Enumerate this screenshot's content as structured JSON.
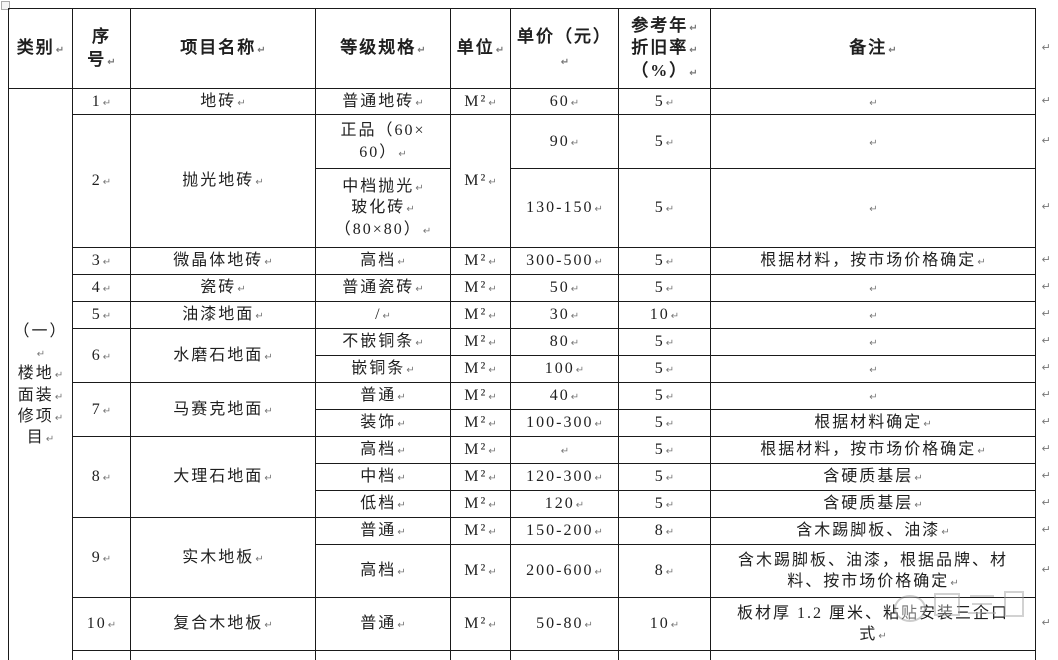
{
  "colors": {
    "ink": "#1f1f1f",
    "border": "#1a1a1a",
    "formatting_mark": "#777777"
  },
  "table": {
    "columns": [
      {
        "key": "category",
        "label": "类别↵"
      },
      {
        "key": "seq",
        "label": "序\n号↵"
      },
      {
        "key": "project",
        "label": "项目名称↵"
      },
      {
        "key": "grade",
        "label": "等级规格↵"
      },
      {
        "key": "unit",
        "label": "单位↵"
      },
      {
        "key": "price",
        "label": "单价（元）↵"
      },
      {
        "key": "depreciation",
        "label": "参考年↵\n折旧率↵\n（%）↵"
      },
      {
        "key": "remark",
        "label": "备注↵"
      }
    ],
    "rows": [
      {
        "id": "r1",
        "cells": [
          {
            "col": "category",
            "text": "（一）↵\n楼地↵\n面装↵\n修项↵\n目↵",
            "rs": 17
          },
          {
            "col": "seq",
            "text": "1↵"
          },
          {
            "col": "project",
            "text": "地砖↵"
          },
          {
            "col": "grade",
            "text": "普通地砖↵"
          },
          {
            "col": "unit",
            "text": "M²↵"
          },
          {
            "col": "price",
            "text": "60↵"
          },
          {
            "col": "depreciation",
            "text": "5↵"
          },
          {
            "col": "remark",
            "text": "↵"
          }
        ]
      },
      {
        "id": "r2a",
        "cells": [
          {
            "col": "seq",
            "text": "2↵",
            "rs": 2
          },
          {
            "col": "project",
            "text": "抛光地砖↵",
            "rs": 2
          },
          {
            "col": "grade",
            "text": "正品（60×\n60）↵"
          },
          {
            "col": "unit",
            "text": "M²↵",
            "rs": 2
          },
          {
            "col": "price",
            "text": "90↵"
          },
          {
            "col": "depreciation",
            "text": "5↵"
          },
          {
            "col": "remark",
            "text": "↵"
          }
        ]
      },
      {
        "id": "r2b",
        "cells": [
          {
            "col": "grade",
            "text": "中档抛光↵\n玻化砖↵\n（80×80）↵"
          },
          {
            "col": "price",
            "text": "130-150↵"
          },
          {
            "col": "depreciation",
            "text": "5↵"
          },
          {
            "col": "remark",
            "text": "↵"
          }
        ]
      },
      {
        "id": "r3",
        "cells": [
          {
            "col": "seq",
            "text": "3↵"
          },
          {
            "col": "project",
            "text": "微晶体地砖↵"
          },
          {
            "col": "grade",
            "text": "高档↵"
          },
          {
            "col": "unit",
            "text": "M²↵"
          },
          {
            "col": "price",
            "text": "300-500↵"
          },
          {
            "col": "depreciation",
            "text": "5↵"
          },
          {
            "col": "remark",
            "text": "根据材料，按市场价格确定↵"
          }
        ]
      },
      {
        "id": "r4",
        "cells": [
          {
            "col": "seq",
            "text": "4↵"
          },
          {
            "col": "project",
            "text": "瓷砖↵"
          },
          {
            "col": "grade",
            "text": "普通瓷砖↵"
          },
          {
            "col": "unit",
            "text": "M²↵"
          },
          {
            "col": "price",
            "text": "50↵"
          },
          {
            "col": "depreciation",
            "text": "5↵"
          },
          {
            "col": "remark",
            "text": "↵"
          }
        ]
      },
      {
        "id": "r5",
        "cells": [
          {
            "col": "seq",
            "text": "5↵"
          },
          {
            "col": "project",
            "text": "油漆地面↵"
          },
          {
            "col": "grade",
            "text": "/↵"
          },
          {
            "col": "unit",
            "text": "M²↵"
          },
          {
            "col": "price",
            "text": "30↵"
          },
          {
            "col": "depreciation",
            "text": "10↵"
          },
          {
            "col": "remark",
            "text": "↵"
          }
        ]
      },
      {
        "id": "r6a",
        "cells": [
          {
            "col": "seq",
            "text": "6↵",
            "rs": 2
          },
          {
            "col": "project",
            "text": "水磨石地面↵",
            "rs": 2
          },
          {
            "col": "grade",
            "text": "不嵌铜条↵"
          },
          {
            "col": "unit",
            "text": "M²↵"
          },
          {
            "col": "price",
            "text": "80↵"
          },
          {
            "col": "depreciation",
            "text": "5↵"
          },
          {
            "col": "remark",
            "text": "↵"
          }
        ]
      },
      {
        "id": "r6b",
        "cells": [
          {
            "col": "grade",
            "text": "嵌铜条↵"
          },
          {
            "col": "unit",
            "text": "M²↵"
          },
          {
            "col": "price",
            "text": "100↵"
          },
          {
            "col": "depreciation",
            "text": "5↵"
          },
          {
            "col": "remark",
            "text": "↵"
          }
        ]
      },
      {
        "id": "r7a",
        "cells": [
          {
            "col": "seq",
            "text": "7↵",
            "rs": 2
          },
          {
            "col": "project",
            "text": "马赛克地面↵",
            "rs": 2
          },
          {
            "col": "grade",
            "text": "普通↵"
          },
          {
            "col": "unit",
            "text": "M²↵"
          },
          {
            "col": "price",
            "text": "40↵"
          },
          {
            "col": "depreciation",
            "text": "5↵"
          },
          {
            "col": "remark",
            "text": "↵"
          }
        ]
      },
      {
        "id": "r7b",
        "cells": [
          {
            "col": "grade",
            "text": "装饰↵"
          },
          {
            "col": "unit",
            "text": "M²↵"
          },
          {
            "col": "price",
            "text": "100-300↵"
          },
          {
            "col": "depreciation",
            "text": "5↵"
          },
          {
            "col": "remark",
            "text": "根据材料确定↵"
          }
        ]
      },
      {
        "id": "r8a",
        "cells": [
          {
            "col": "seq",
            "text": "8↵",
            "rs": 3
          },
          {
            "col": "project",
            "text": "大理石地面↵",
            "rs": 3
          },
          {
            "col": "grade",
            "text": "高档↵"
          },
          {
            "col": "unit",
            "text": "M²↵"
          },
          {
            "col": "price",
            "text": "↵"
          },
          {
            "col": "depreciation",
            "text": "5↵"
          },
          {
            "col": "remark",
            "text": "根据材料，按市场价格确定↵"
          }
        ]
      },
      {
        "id": "r8b",
        "cells": [
          {
            "col": "grade",
            "text": "中档↵"
          },
          {
            "col": "unit",
            "text": "M²↵"
          },
          {
            "col": "price",
            "text": "120-300↵"
          },
          {
            "col": "depreciation",
            "text": "5↵"
          },
          {
            "col": "remark",
            "text": "含硬质基层↵"
          }
        ]
      },
      {
        "id": "r8c",
        "cells": [
          {
            "col": "grade",
            "text": "低档↵"
          },
          {
            "col": "unit",
            "text": "M²↵"
          },
          {
            "col": "price",
            "text": "120↵"
          },
          {
            "col": "depreciation",
            "text": "5↵"
          },
          {
            "col": "remark",
            "text": "含硬质基层↵"
          }
        ]
      },
      {
        "id": "r9a",
        "cells": [
          {
            "col": "seq",
            "text": "9↵",
            "rs": 2
          },
          {
            "col": "project",
            "text": "实木地板↵",
            "rs": 2
          },
          {
            "col": "grade",
            "text": "普通↵"
          },
          {
            "col": "unit",
            "text": "M²↵"
          },
          {
            "col": "price",
            "text": "150-200↵"
          },
          {
            "col": "depreciation",
            "text": "8↵"
          },
          {
            "col": "remark",
            "text": "含木踢脚板、油漆↵"
          }
        ]
      },
      {
        "id": "r9b",
        "cells": [
          {
            "col": "grade",
            "text": "高档↵"
          },
          {
            "col": "unit",
            "text": "M²↵"
          },
          {
            "col": "price",
            "text": "200-600↵"
          },
          {
            "col": "depreciation",
            "text": "8↵"
          },
          {
            "col": "remark",
            "text": "含木踢脚板、油漆，根据品牌、材\n料、按市场价格确定↵"
          }
        ]
      },
      {
        "id": "r10",
        "cells": [
          {
            "col": "seq",
            "text": "10↵"
          },
          {
            "col": "project",
            "text": "复合木地板↵"
          },
          {
            "col": "grade",
            "text": "普通↵"
          },
          {
            "col": "unit",
            "text": "M²↵"
          },
          {
            "col": "price",
            "text": "50-80↵"
          },
          {
            "col": "depreciation",
            "text": "10↵"
          },
          {
            "col": "remark",
            "text": "板材厚 1.2 厘米、粘贴安装三企口\n式↵"
          }
        ]
      },
      {
        "id": "partial",
        "cells": [
          {
            "col": "seq",
            "text": ""
          },
          {
            "col": "project",
            "text": ""
          },
          {
            "col": "grade",
            "text": ""
          },
          {
            "col": "unit",
            "text": ""
          },
          {
            "col": "price",
            "text": ""
          },
          {
            "col": "depreciation",
            "text": ""
          },
          {
            "col": "remark",
            "text": ""
          }
        ]
      }
    ]
  }
}
